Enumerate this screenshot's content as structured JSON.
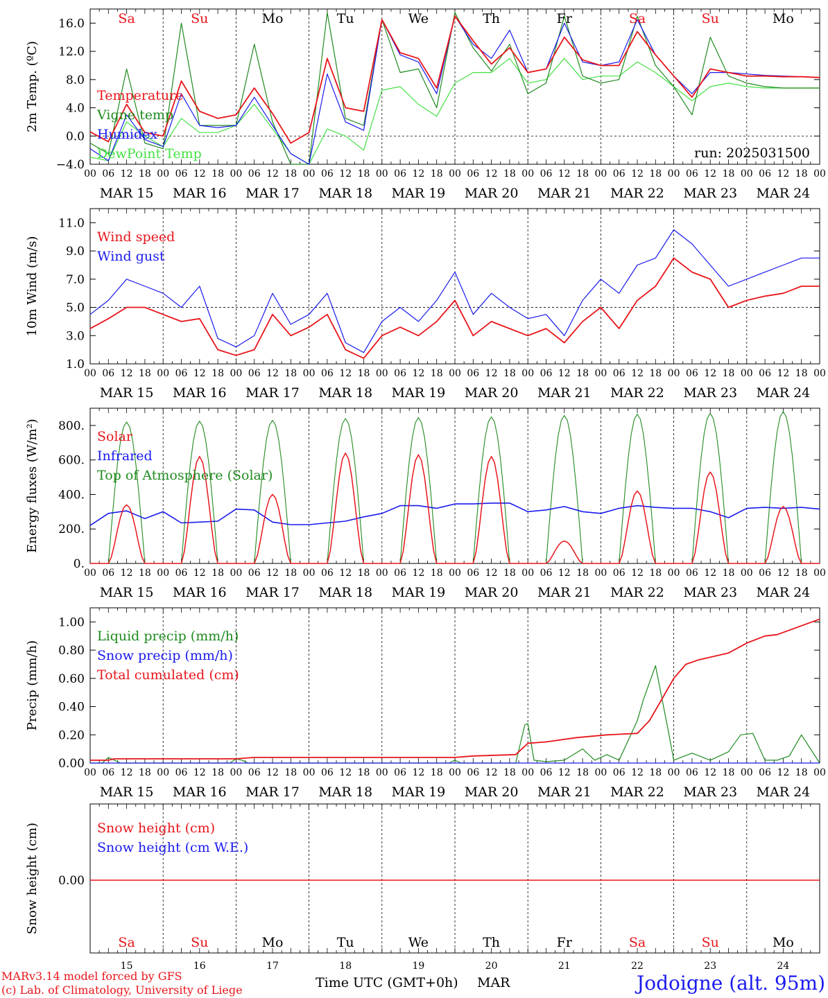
{
  "footer": {
    "credit_line1": "MARv3.14 model forced by GFS",
    "credit_line2": "(c) Lab. of Climatology, University of Liege",
    "xlabel": "Time UTC (GMT+0h)",
    "month": "MAR",
    "location": "Jodoigne (alt. 95m)"
  },
  "colors": {
    "red": "#e8151b",
    "green": "#1f8a1f",
    "blue": "#1a1aee",
    "lightgreen": "#44e044",
    "grid": "#000000"
  },
  "days": [
    {
      "date": "MAR 15",
      "num": "15",
      "weekday": "Sa",
      "weekend": true
    },
    {
      "date": "MAR 16",
      "num": "16",
      "weekday": "Su",
      "weekend": true
    },
    {
      "date": "MAR 17",
      "num": "17",
      "weekday": "Mo",
      "weekend": false
    },
    {
      "date": "MAR 18",
      "num": "18",
      "weekday": "Tu",
      "weekend": false
    },
    {
      "date": "MAR 19",
      "num": "19",
      "weekday": "We",
      "weekend": false
    },
    {
      "date": "MAR 20",
      "num": "20",
      "weekday": "Th",
      "weekend": false
    },
    {
      "date": "MAR 21",
      "num": "21",
      "weekday": "Fr",
      "weekend": false
    },
    {
      "date": "MAR 22",
      "num": "22",
      "weekday": "Sa",
      "weekend": true
    },
    {
      "date": "MAR 23",
      "num": "23",
      "weekday": "Su",
      "weekend": true
    },
    {
      "date": "MAR 24",
      "num": "24",
      "weekday": "Mo",
      "weekend": false
    }
  ],
  "hour_ticks": [
    "00",
    "06",
    "12",
    "18"
  ],
  "hour_tick_end": "00",
  "chart_data": [
    {
      "type": "line",
      "id": "temp",
      "ylabel": "2m Temp. (ºC)",
      "ylim": [
        -4,
        18
      ],
      "yticks": [
        -4.0,
        0.0,
        4.0,
        8.0,
        12.0,
        16.0
      ],
      "ytick_labels": [
        "−4.0",
        "0.0",
        "4.0",
        "8.0",
        "12.0",
        "16.0"
      ],
      "ref_line": 0,
      "annotation": "run: 2025031500",
      "x_hours": [
        0,
        6,
        12,
        18,
        24,
        30,
        36,
        42,
        48,
        54,
        60,
        66,
        72,
        78,
        84,
        90,
        96,
        102,
        108,
        114,
        120,
        126,
        132,
        138,
        144,
        150,
        156,
        162,
        168,
        174,
        180,
        186,
        192,
        198,
        204,
        210,
        216,
        222,
        228,
        234,
        240
      ],
      "series": [
        {
          "name": "Temperature",
          "color": "red",
          "values": [
            0.6,
            -0.8,
            4.5,
            0.5,
            0.0,
            7.8,
            3.5,
            2.5,
            3.0,
            6.8,
            3.2,
            -1.0,
            0.5,
            11.0,
            4.0,
            3.5,
            16.5,
            11.8,
            11.0,
            6.8,
            17.0,
            13.5,
            10.2,
            12.5,
            9.0,
            9.5,
            14.0,
            10.8,
            10.0,
            10.0,
            14.8,
            11.5,
            8.5,
            5.5,
            9.5,
            9.0,
            8.5,
            8.5,
            8.4,
            8.4,
            8.3
          ]
        },
        {
          "name": "Vigne temp",
          "color": "green",
          "values": [
            -1.0,
            -2.5,
            9.5,
            -1.0,
            -1.8,
            16.0,
            1.5,
            1.5,
            1.5,
            13.0,
            2.0,
            -4.0,
            -4.0,
            17.5,
            2.5,
            1.5,
            16.5,
            9.0,
            9.5,
            4.0,
            17.5,
            12.5,
            9.2,
            13.0,
            6.0,
            7.5,
            17.0,
            8.5,
            7.5,
            8.0,
            17.0,
            10.0,
            7.0,
            3.0,
            14.0,
            8.5,
            7.5,
            7.0,
            6.8,
            6.8,
            6.8
          ]
        },
        {
          "name": "Humidex",
          "color": "blue",
          "values": [
            -1.8,
            -3.5,
            3.0,
            -0.5,
            -1.5,
            6.0,
            1.5,
            1.2,
            1.5,
            5.5,
            1.5,
            -2.5,
            -4.0,
            8.8,
            2.0,
            0.8,
            16.5,
            11.5,
            10.5,
            6.0,
            17.0,
            13.0,
            11.0,
            15.0,
            9.0,
            9.5,
            16.0,
            10.5,
            10.0,
            10.5,
            16.5,
            11.5,
            8.5,
            6.0,
            9.0,
            9.0,
            8.8,
            8.6,
            8.5,
            8.4,
            8.3
          ]
        },
        {
          "name": "DewPoint Temp",
          "color": "lightgreen",
          "values": [
            -3.0,
            -3.5,
            2.0,
            0.0,
            -1.5,
            2.5,
            0.5,
            0.5,
            1.5,
            4.5,
            1.0,
            -2.5,
            -4.0,
            1.0,
            0.0,
            -2.0,
            6.5,
            7.0,
            4.5,
            2.8,
            7.5,
            9.0,
            9.0,
            11.0,
            7.5,
            8.0,
            11.0,
            8.0,
            8.5,
            8.5,
            10.5,
            9.0,
            7.0,
            5.0,
            7.0,
            7.5,
            7.0,
            6.8,
            6.8,
            6.8,
            6.8
          ]
        }
      ]
    },
    {
      "type": "line",
      "id": "wind",
      "ylabel": "10m Wind (m/s)",
      "ylim": [
        1,
        12
      ],
      "yticks": [
        1.0,
        3.0,
        5.0,
        7.0,
        9.0,
        11.0
      ],
      "ytick_labels": [
        "1.0",
        "3.0",
        "5.0",
        "7.0",
        "9.0",
        "11.0"
      ],
      "ref_line": 5,
      "x_hours": [
        0,
        6,
        12,
        18,
        24,
        30,
        36,
        42,
        48,
        54,
        60,
        66,
        72,
        78,
        84,
        90,
        96,
        102,
        108,
        114,
        120,
        126,
        132,
        138,
        144,
        150,
        156,
        162,
        168,
        174,
        180,
        186,
        192,
        198,
        204,
        210,
        216,
        222,
        228,
        234,
        240
      ],
      "series": [
        {
          "name": "Wind speed",
          "color": "red",
          "values": [
            3.5,
            4.2,
            5.0,
            5.0,
            4.5,
            4.0,
            4.2,
            2.0,
            1.6,
            2.0,
            4.5,
            3.0,
            3.6,
            4.5,
            2.0,
            1.4,
            3.0,
            3.6,
            3.0,
            4.0,
            5.5,
            3.0,
            4.0,
            3.5,
            3.0,
            3.5,
            2.5,
            4.0,
            5.0,
            3.5,
            5.5,
            6.5,
            8.5,
            7.5,
            7.0,
            5.0,
            5.5,
            5.8,
            6.0,
            6.5,
            6.5
          ]
        },
        {
          "name": "Wind gust",
          "color": "blue",
          "values": [
            4.5,
            5.5,
            7.0,
            6.5,
            6.0,
            5.0,
            6.5,
            2.8,
            2.2,
            3.0,
            6.0,
            3.8,
            4.5,
            6.0,
            2.5,
            1.8,
            4.0,
            5.0,
            4.0,
            5.5,
            7.5,
            4.5,
            6.0,
            5.0,
            4.2,
            4.5,
            3.0,
            5.5,
            7.0,
            6.0,
            8.0,
            8.5,
            10.5,
            9.5,
            8.0,
            6.5,
            7.0,
            7.5,
            8.0,
            8.5,
            8.5
          ]
        }
      ]
    },
    {
      "type": "line",
      "id": "energy",
      "ylabel": "Energy fluxes (W/m²)",
      "ylim": [
        0,
        900
      ],
      "yticks": [
        0,
        200,
        400,
        600,
        800
      ],
      "ytick_labels": [
        "0.",
        "200.",
        "400.",
        "600.",
        "800."
      ],
      "daylight": {
        "sunrise_h": 6,
        "sunset_h": 18
      },
      "series": [
        {
          "name": "Solar",
          "color": "red",
          "daily_peak": [
            340,
            620,
            400,
            640,
            630,
            620,
            130,
            420,
            530,
            330
          ]
        },
        {
          "name": "Infrared",
          "color": "blue",
          "x_hours": [
            0,
            6,
            12,
            18,
            24,
            30,
            36,
            42,
            48,
            54,
            60,
            66,
            72,
            78,
            84,
            90,
            96,
            102,
            108,
            114,
            120,
            126,
            132,
            138,
            144,
            150,
            156,
            162,
            168,
            174,
            180,
            186,
            192,
            198,
            204,
            210,
            216,
            222,
            228,
            234,
            240
          ],
          "values": [
            220,
            290,
            305,
            260,
            300,
            235,
            240,
            245,
            315,
            310,
            240,
            225,
            225,
            235,
            245,
            270,
            290,
            335,
            335,
            320,
            345,
            345,
            350,
            350,
            300,
            310,
            330,
            300,
            290,
            320,
            335,
            325,
            320,
            320,
            300,
            265,
            320,
            325,
            320,
            325,
            315
          ]
        },
        {
          "name": "Top of Atmosphere (Solar)",
          "color": "green",
          "daily_peak": [
            820,
            825,
            830,
            840,
            845,
            850,
            858,
            865,
            870,
            880
          ]
        }
      ]
    },
    {
      "type": "line",
      "id": "precip",
      "ylabel": "Precip (mm/h)",
      "ylim": [
        0,
        1.1
      ],
      "yticks": [
        0.0,
        0.2,
        0.4,
        0.6,
        0.8,
        1.0
      ],
      "ytick_labels": [
        "0.00",
        "0.20",
        "0.40",
        "0.60",
        "0.80",
        "1.00"
      ],
      "series": [
        {
          "name": "Liquid precip (mm/h)",
          "color": "green",
          "x_hours": [
            0,
            4,
            6,
            8,
            10,
            12,
            30,
            46,
            48,
            50,
            52,
            118,
            120,
            122,
            140,
            143,
            144,
            146,
            150,
            156,
            162,
            166,
            170,
            174,
            180,
            182,
            186,
            190,
            192,
            198,
            204,
            210,
            214,
            218,
            222,
            226,
            230,
            234,
            240
          ],
          "values": [
            0,
            0,
            0.04,
            0.02,
            0,
            0,
            0,
            0,
            0.03,
            0.02,
            0,
            0,
            0.02,
            0,
            0,
            0.27,
            0.28,
            0.02,
            0.01,
            0.02,
            0.1,
            0.02,
            0.06,
            0.02,
            0.3,
            0.45,
            0.69,
            0.25,
            0.02,
            0.07,
            0.02,
            0.08,
            0.2,
            0.21,
            0.02,
            0.02,
            0.05,
            0.2,
            0
          ]
        },
        {
          "name": "Snow precip (mm/h)",
          "color": "blue",
          "x_hours": [
            0,
            240
          ],
          "values": [
            0,
            0
          ]
        },
        {
          "name": "Total cumulated (cm)",
          "color": "red",
          "x_hours": [
            0,
            6,
            8,
            48,
            54,
            120,
            126,
            140,
            144,
            150,
            160,
            170,
            180,
            184,
            188,
            192,
            196,
            200,
            204,
            210,
            216,
            222,
            226,
            240
          ],
          "values": [
            0.02,
            0.02,
            0.03,
            0.03,
            0.04,
            0.04,
            0.05,
            0.06,
            0.14,
            0.15,
            0.18,
            0.2,
            0.21,
            0.3,
            0.45,
            0.6,
            0.7,
            0.73,
            0.75,
            0.78,
            0.85,
            0.9,
            0.91,
            1.02
          ]
        }
      ]
    },
    {
      "type": "line",
      "id": "snow",
      "ylabel": "Snow height (cm)",
      "yticks": [
        0.0
      ],
      "ytick_labels": [
        "0.00"
      ],
      "series": [
        {
          "name": "Snow height (cm)",
          "color": "red",
          "x_hours": [
            0,
            240
          ],
          "values": [
            0,
            0
          ]
        },
        {
          "name": "Snow height (cm W.E.)",
          "color": "blue",
          "x_hours": [
            0,
            240
          ],
          "values": [
            0,
            0
          ]
        }
      ]
    }
  ]
}
